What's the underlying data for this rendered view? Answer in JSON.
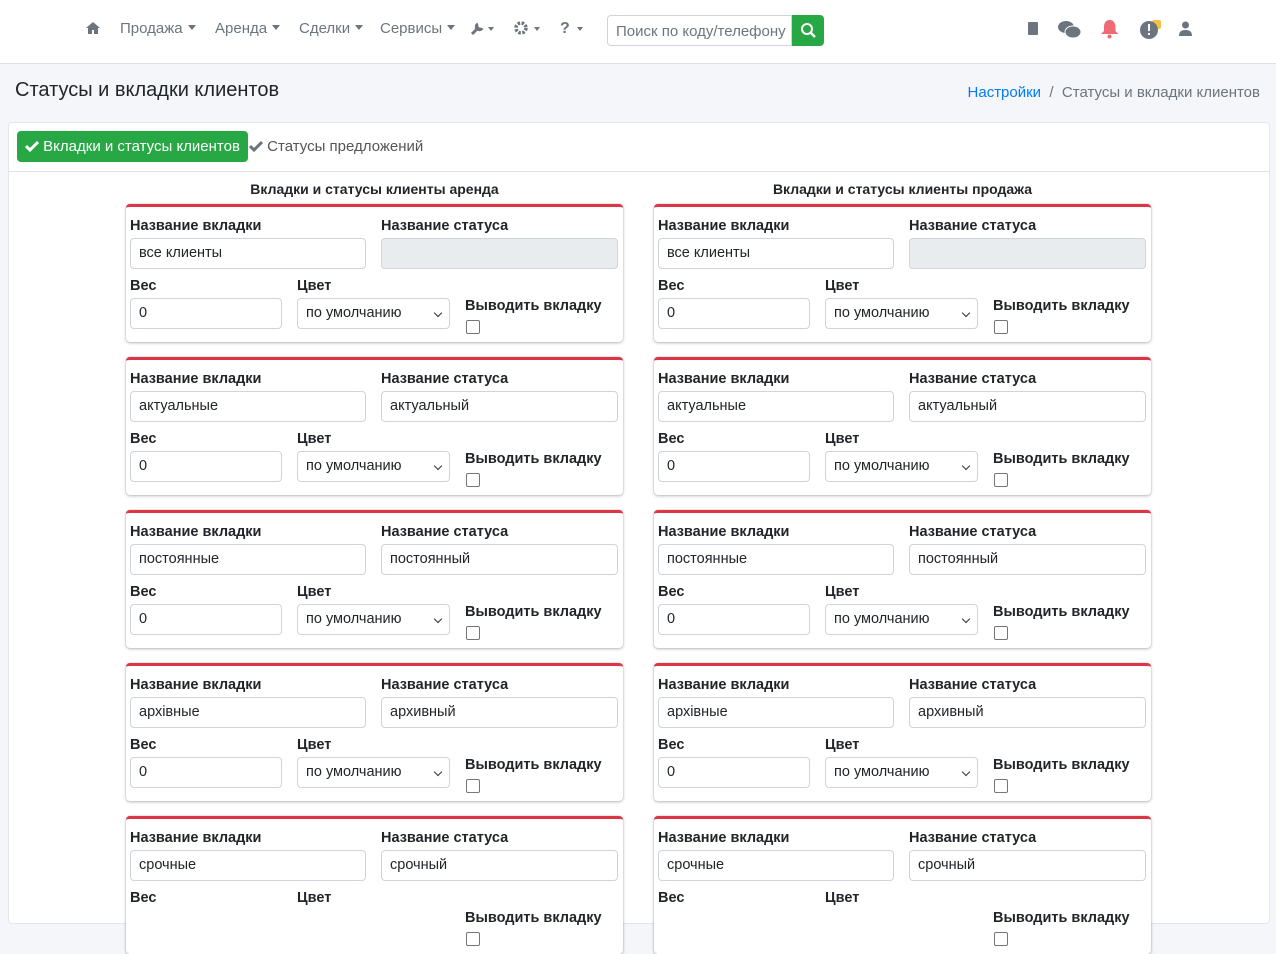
{
  "nav": {
    "items": [
      "Продажа",
      "Аренда",
      "Сделки",
      "Сервисы"
    ],
    "search_placeholder": "Поиск по коду/телефону"
  },
  "header": {
    "title": "Статусы и вкладки клиентов",
    "breadcrumb": [
      "Настройки",
      "Статусы и вкладки клиентов"
    ]
  },
  "tabs": [
    "Вкладки и статусы клиентов",
    "Статусы предложений"
  ],
  "labels": {
    "tab_name": "Название вкладки",
    "status_name": "Название статуса",
    "weight": "Вес",
    "color": "Цвет",
    "show_tab": "Выводить вкладку"
  },
  "columns": [
    {
      "title": "Вкладки и статусы клиенты аренда",
      "cards": [
        {
          "tab": "все клиенты",
          "weight": "0",
          "color": "по умолчанию"
        },
        {
          "tab": "актуальные",
          "status": "актуальный",
          "weight": "0",
          "color": "по умолчанию"
        },
        {
          "tab": "постоянные",
          "status": "постоянный",
          "weight": "0",
          "color": "по умолчанию"
        },
        {
          "tab": "архівные",
          "status": "архивный",
          "weight": "0",
          "color": "по умолчанию"
        },
        {
          "tab": "срочные",
          "status": "срочный"
        }
      ]
    },
    {
      "title": "Вкладки и статусы клиенты продажа",
      "cards": [
        {
          "tab": "все клиенты",
          "weight": "0",
          "color": "по умолчанию"
        },
        {
          "tab": "актуальные",
          "status": "актуальный",
          "weight": "0",
          "color": "по умолчанию"
        },
        {
          "tab": "постоянные",
          "status": "постоянный",
          "weight": "0",
          "color": "по умолчанию"
        },
        {
          "tab": "архівные",
          "status": "архивный",
          "weight": "0",
          "color": "по умолчанию"
        },
        {
          "tab": "срочные",
          "status": "срочный"
        }
      ]
    }
  ]
}
